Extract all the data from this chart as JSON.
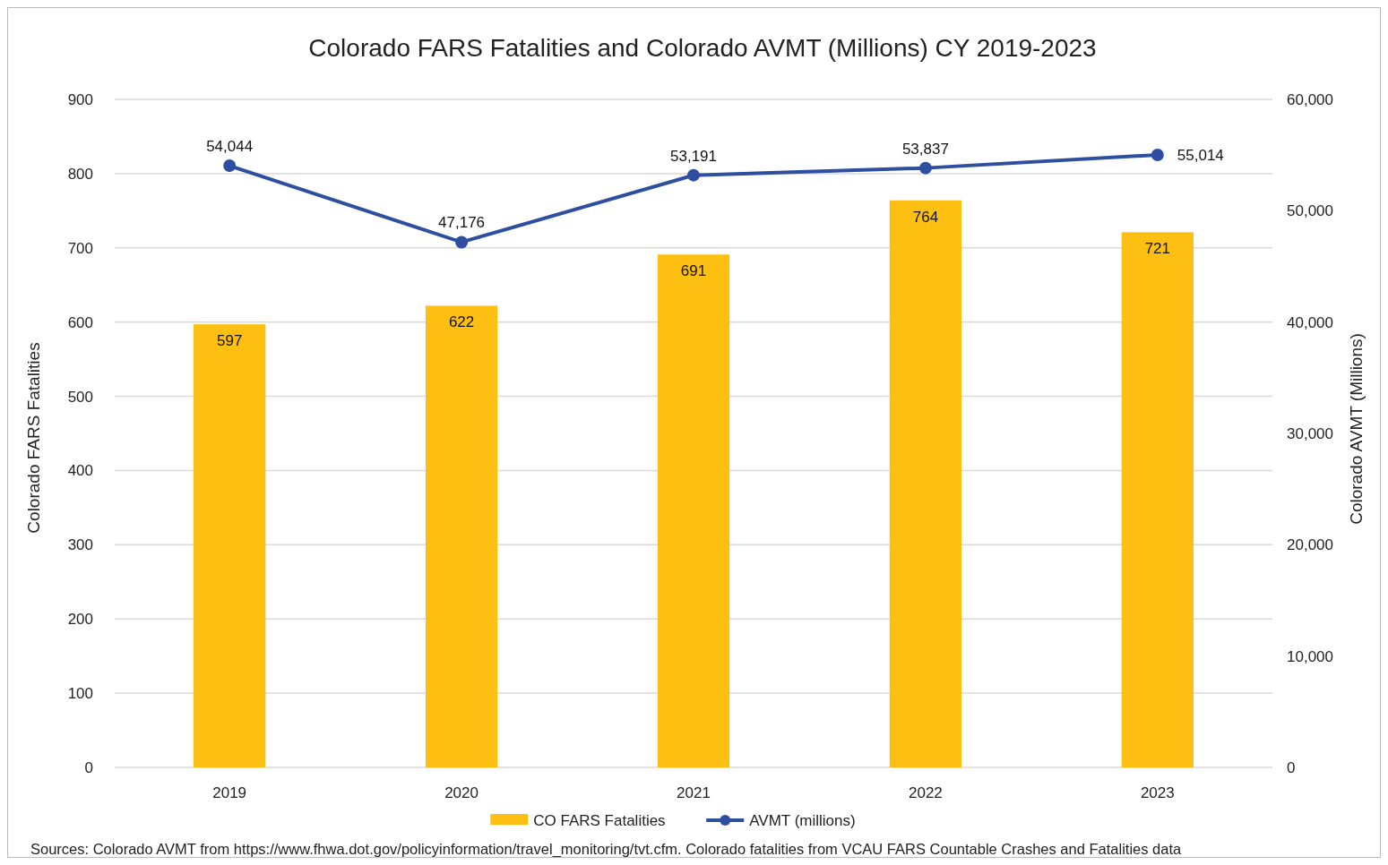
{
  "chart_data": {
    "type": "bar",
    "title": "Colorado FARS Fatalities and Colorado AVMT (Millions) CY 2019-2023",
    "ylabel": "Colorado FARS Fatalities",
    "y2label": "Colorado AVMT (Millions)",
    "categories": [
      "2019",
      "2020",
      "2021",
      "2022",
      "2023"
    ],
    "series": [
      {
        "name": "CO FARS Fatalities",
        "color": "#fcbf12",
        "values": [
          597,
          622,
          691,
          764,
          721
        ],
        "value_labels": [
          "597",
          "622",
          "691",
          "764",
          "721"
        ]
      },
      {
        "name": "AVMT (millions)",
        "type": "line",
        "axis": "y2",
        "color": "#2e4fa0",
        "marker": "circle",
        "values": [
          54044,
          47176,
          53191,
          53837,
          55014
        ],
        "value_labels": [
          "54,044",
          "47,176",
          "53,191",
          "53,837",
          "55,014"
        ]
      }
    ],
    "ylim": [
      0,
      900
    ],
    "yticks": [
      0,
      100,
      200,
      300,
      400,
      500,
      600,
      700,
      800,
      900
    ],
    "y2lim": [
      0,
      60000
    ],
    "y2ticks": [
      {
        "value": 0,
        "label": "0"
      },
      {
        "value": 10000,
        "label": "10,000"
      },
      {
        "value": 20000,
        "label": "20,000"
      },
      {
        "value": 30000,
        "label": "30,000"
      },
      {
        "value": 40000,
        "label": "40,000"
      },
      {
        "value": 50000,
        "label": "50,000"
      },
      {
        "value": 60000,
        "label": "60,000"
      }
    ],
    "grid": "y",
    "legend": "bottom",
    "annotations": [
      "Sources: Colorado AVMT from https://www.fhwa.dot.gov/policyinformation/travel_monitoring/tvt.cfm. Colorado fatalities from VCAU FARS Countable Crashes and Fatalities data"
    ]
  }
}
